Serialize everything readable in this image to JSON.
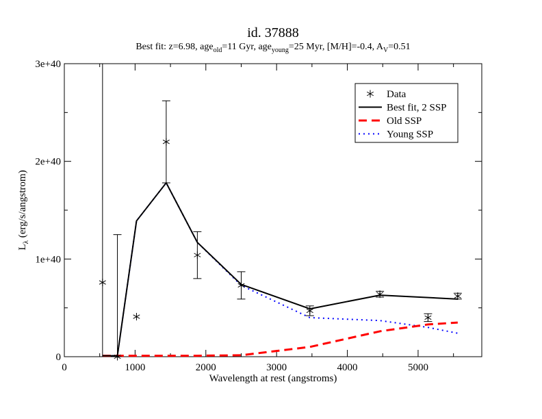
{
  "chart_data": {
    "type": "line",
    "title": "id. 37888",
    "subtitle_parts": [
      {
        "t": "Best fit: z=6.98,  age"
      },
      {
        "t": "old",
        "sub": true
      },
      {
        "t": "=11 Gyr, age"
      },
      {
        "t": "young",
        "sub": true
      },
      {
        "t": "=25 Myr, [M/H]=-0.4, A"
      },
      {
        "t": "V",
        "sub": true
      },
      {
        "t": "=0.51"
      }
    ],
    "xlabel": "Wavelength at rest (angstroms)",
    "ylabel_main": "L",
    "ylabel_sub": "λ",
    "ylabel_rest": " (erg/s/angstrom)",
    "xlim": [
      0,
      5900
    ],
    "ylim": [
      0,
      3e+40
    ],
    "xticks": [
      0,
      1000,
      2000,
      3000,
      4000,
      5000
    ],
    "xtick_labels": [
      "0",
      "1000",
      "2000",
      "3000",
      "4000",
      "5000"
    ],
    "yticks": [
      0,
      1e+40,
      2e+40,
      3e+40
    ],
    "ytick_labels": [
      "0",
      "1e+40",
      "2e+40",
      "3e+40"
    ],
    "xminor": 500,
    "yminor": 5e+39,
    "data_points": {
      "name": "Data",
      "x": [
        540,
        750,
        1020,
        1440,
        1880,
        2500,
        3470,
        4460,
        5140,
        5560
      ],
      "y": [
        7.6e+39,
        0,
        4.1e+39,
        2.2e+40,
        1.04e+40,
        7.3e+39,
        4.7e+39,
        6.4e+39,
        4e+39,
        6.2e+39
      ],
      "yerr": [
        null,
        1.25e+40,
        null,
        4.2e+39,
        2.4e+39,
        1.4e+39,
        5e+38,
        3e+38,
        4e+38,
        3e+38
      ],
      "err_from_zero": [
        true,
        false,
        false,
        false,
        false,
        false,
        false,
        false,
        false,
        false
      ]
    },
    "series": [
      {
        "name": "Best fit, 2 SSP",
        "style": "solid",
        "color": "#000000",
        "x": [
          540,
          750,
          1020,
          1440,
          1880,
          2500,
          3470,
          4460,
          5560
        ],
        "y": [
          1e+38,
          1e+38,
          1.39e+40,
          1.78e+40,
          1.17e+40,
          7.4e+39,
          4.9e+39,
          6.3e+39,
          5.9e+39
        ]
      },
      {
        "name": "Old SSP",
        "style": "dashed",
        "color": "#ff0000",
        "x": [
          540,
          750,
          1020,
          1440,
          1880,
          2500,
          3470,
          4460,
          5140,
          5560
        ],
        "y": [
          1e+38,
          1e+38,
          1e+38,
          1e+38,
          1e+38,
          1.5e+38,
          1e+39,
          2.6e+39,
          3.3e+39,
          3.5e+39
        ]
      },
      {
        "name": "Young SSP",
        "style": "dotted",
        "color": "#0000ff",
        "x": [
          540,
          750,
          1020,
          1440,
          1880,
          2500,
          3470,
          4460,
          5140,
          5560
        ],
        "y": [
          1e+38,
          1e+38,
          1.39e+40,
          1.78e+40,
          1.17e+40,
          7.3e+39,
          4e+39,
          3.7e+39,
          3e+39,
          2.4e+39
        ]
      }
    ],
    "legend_position": "top-right",
    "grid": false
  }
}
